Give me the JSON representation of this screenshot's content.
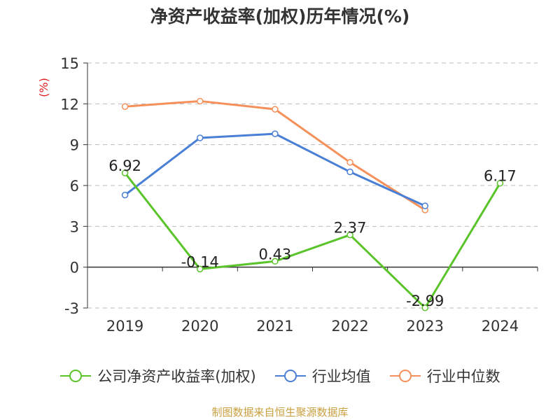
{
  "chart_data": {
    "type": "line",
    "title": "净资产收益率(加权)历年情况(%)",
    "ylabel": "(%)",
    "xlabel": "",
    "categories": [
      "2019",
      "2020",
      "2021",
      "2022",
      "2023",
      "2024"
    ],
    "ylim": [
      -3,
      15
    ],
    "yticks": [
      -3,
      0,
      3,
      6,
      9,
      12,
      15
    ],
    "grid": true,
    "legend_position": "bottom",
    "series": [
      {
        "name": "公司净资产收益率(加权)",
        "color": "#5ac42a",
        "values": [
          6.92,
          -0.14,
          0.43,
          2.37,
          -2.99,
          6.17
        ],
        "labels": [
          "6.92",
          "-0.14",
          "0.43",
          "2.37",
          "-2.99",
          "6.17"
        ],
        "show_labels": true
      },
      {
        "name": "行业均值",
        "color": "#4a7fd6",
        "values": [
          5.3,
          9.5,
          9.8,
          7.0,
          4.5,
          null
        ],
        "show_labels": false
      },
      {
        "name": "行业中位数",
        "color": "#f5905a",
        "values": [
          11.8,
          12.2,
          11.6,
          7.7,
          4.2,
          null
        ],
        "show_labels": false
      }
    ]
  },
  "colors": {
    "axis": "#333333",
    "grid": "#bbbbbb",
    "ylabel": "#e02020",
    "source": "#c9a040"
  },
  "source": "制图数据来自恒生聚源数据库"
}
